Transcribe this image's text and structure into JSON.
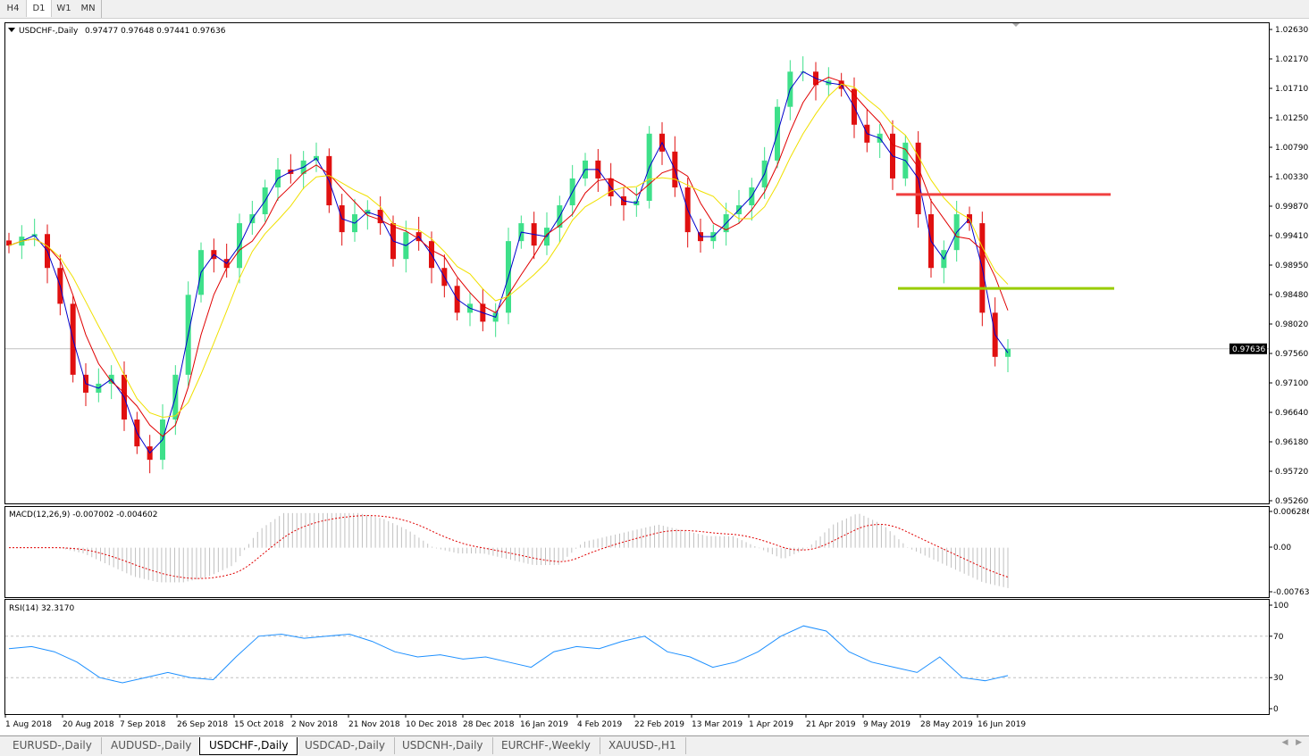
{
  "timeframes": [
    "H4",
    "D1",
    "W1",
    "MN"
  ],
  "selected_timeframe": "D1",
  "chart": {
    "header": "USDCHF-,Daily",
    "ohlc": "0.97477 0.97648 0.97441 0.97636",
    "current_price": "0.97636",
    "price_ticks": [
      "1.02630",
      "1.02170",
      "1.01710",
      "1.01250",
      "1.00790",
      "1.00330",
      "0.99870",
      "0.99410",
      "0.98950",
      "0.98480",
      "0.98020",
      "0.97560",
      "0.97100",
      "0.96640",
      "0.96180",
      "0.95720",
      "0.95260"
    ],
    "price_range": [
      0.9526,
      1.0263
    ],
    "closes": [
      0.9925,
      0.9939,
      0.9943,
      0.989,
      0.9834,
      0.9723,
      0.9695,
      0.9709,
      0.9723,
      0.9653,
      0.9611,
      0.959,
      0.9653,
      0.9723,
      0.9848,
      0.9918,
      0.9904,
      0.989,
      0.996,
      0.9974,
      1.0016,
      1.0044,
      1.0037,
      1.0058,
      1.0065,
      0.9988,
      0.9946,
      0.9974,
      0.9981,
      0.996,
      0.9904,
      0.9946,
      0.9932,
      0.989,
      0.9862,
      0.982,
      0.9834,
      0.9806,
      0.982,
      0.9932,
      0.996,
      0.9925,
      0.9953,
      0.9988,
      1.003,
      1.0058,
      1.003,
      1.0002,
      0.9988,
      0.9995,
      1.01,
      1.0072,
      1.0016,
      0.9946,
      0.9932,
      0.9946,
      0.9974,
      0.9988,
      1.0016,
      1.0058,
      1.0142,
      1.0197,
      1.0197,
      1.0176,
      1.0183,
      1.017,
      1.0114,
      1.0086,
      1.01,
      1.003,
      1.0086,
      0.9974,
      0.989,
      0.9918,
      0.9974,
      0.996,
      0.982,
      0.9751,
      0.97636
    ],
    "resistance_level": 1.0005,
    "support_level": 0.9858,
    "colors": {
      "bull": "#3ee08a",
      "bear": "#e01010",
      "ma_fast": "#0000cc",
      "ma_mid": "#e00000",
      "ma_slow": "#f0e000",
      "resistance": "#f04040",
      "support": "#99cc00"
    }
  },
  "macd": {
    "label": "MACD(12,26,9) -0.007002 -0.004602",
    "ticks": [
      "0.006286",
      "0.00",
      "-0.007635"
    ],
    "range": [
      -0.007635,
      0.006286
    ],
    "histogram": [
      0,
      0,
      0,
      -0.001,
      -0.003,
      -0.005,
      -0.006,
      -0.006,
      -0.005,
      -0.003,
      0.003,
      0.006,
      0.006,
      0.006,
      0.006,
      0.005,
      0.003,
      0,
      -0.001,
      -0.001,
      -0.002,
      -0.003,
      -0.003,
      0.001,
      0.002,
      0.003,
      0.004,
      0.003,
      0.002,
      0.002,
      0.0,
      -0.002,
      0.0,
      0.004,
      0.006,
      0.004,
      0.0,
      -0.002,
      -0.004,
      -0.006,
      -0.007
    ]
  },
  "rsi": {
    "label": "RSI(14) 32.3170",
    "ticks": [
      "100",
      "70",
      "30",
      "0"
    ],
    "levels": [
      70,
      30
    ],
    "values": [
      58,
      60,
      55,
      45,
      30,
      25,
      30,
      35,
      30,
      28,
      50,
      70,
      72,
      68,
      70,
      72,
      65,
      55,
      50,
      52,
      48,
      50,
      45,
      40,
      55,
      60,
      58,
      65,
      70,
      55,
      50,
      40,
      45,
      55,
      70,
      80,
      75,
      55,
      45,
      40,
      35,
      50,
      30,
      27,
      32
    ]
  },
  "date_labels": [
    "1 Aug 2018",
    "20 Aug 2018",
    "7 Sep 2018",
    "26 Sep 2018",
    "15 Oct 2018",
    "2 Nov 2018",
    "21 Nov 2018",
    "10 Dec 2018",
    "28 Dec 2018",
    "16 Jan 2019",
    "4 Feb 2019",
    "22 Feb 2019",
    "13 Mar 2019",
    "1 Apr 2019",
    "21 Apr 2019",
    "9 May 2019",
    "28 May 2019",
    "16 Jun 2019"
  ],
  "tabs": [
    "EURUSD-,Daily",
    "AUDUSD-,Daily",
    "USDCHF-,Daily",
    "USDCAD-,Daily",
    "USDCNH-,Daily",
    "EURCHF-,Weekly",
    "XAUUSD-,H1"
  ],
  "active_tab": "USDCHF-,Daily"
}
